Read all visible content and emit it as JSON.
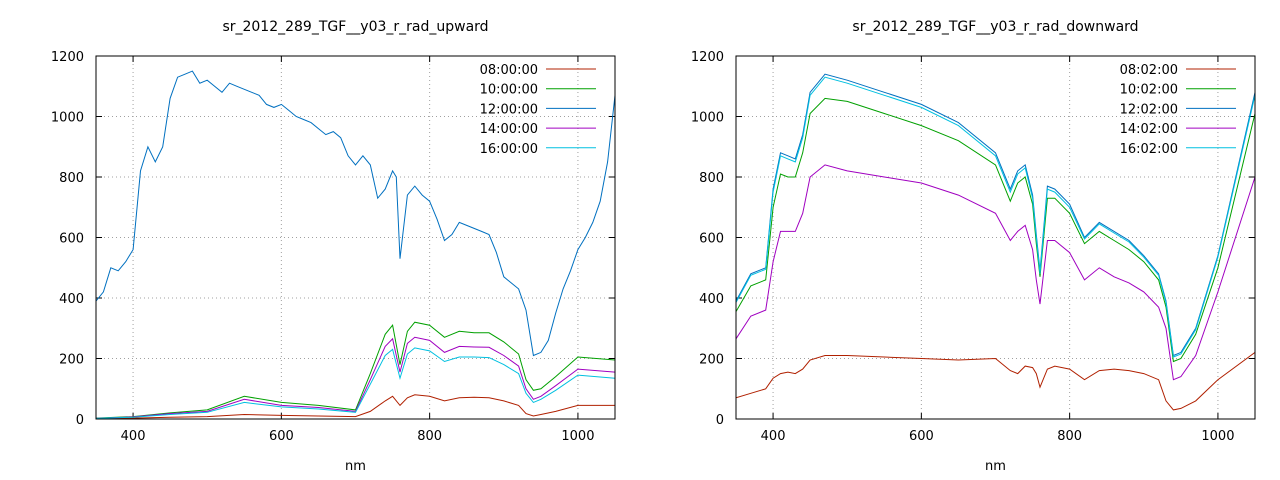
{
  "chart_data": [
    {
      "type": "line",
      "title": "sr_2012_289_TGF__y03_r_rad_upward",
      "xlabel": "nm",
      "ylabel": "",
      "xlim": [
        350,
        1050
      ],
      "ylim": [
        0,
        1200
      ],
      "xticks": [
        400,
        600,
        800,
        1000
      ],
      "yticks": [
        0,
        200,
        400,
        600,
        800,
        1000,
        1200
      ],
      "grid": true,
      "legend_position": "top-right",
      "series": [
        {
          "name": "08:00:00",
          "color": "#b02000",
          "x": [
            350,
            400,
            450,
            500,
            550,
            600,
            650,
            700,
            720,
            740,
            750,
            760,
            770,
            780,
            800,
            820,
            840,
            860,
            880,
            900,
            920,
            930,
            940,
            950,
            970,
            1000,
            1050
          ],
          "y": [
            2,
            3,
            6,
            8,
            15,
            12,
            10,
            8,
            25,
            60,
            75,
            45,
            70,
            80,
            75,
            60,
            70,
            72,
            70,
            60,
            45,
            18,
            10,
            15,
            25,
            45,
            45
          ]
        },
        {
          "name": "10:00:00",
          "color": "#00a000",
          "x": [
            350,
            400,
            450,
            500,
            550,
            600,
            650,
            700,
            720,
            740,
            750,
            760,
            770,
            780,
            800,
            820,
            840,
            860,
            880,
            900,
            920,
            930,
            940,
            950,
            970,
            1000,
            1050
          ],
          "y": [
            3,
            8,
            20,
            30,
            75,
            55,
            45,
            30,
            150,
            280,
            310,
            180,
            290,
            320,
            310,
            270,
            290,
            285,
            285,
            255,
            215,
            130,
            95,
            100,
            140,
            205,
            195
          ]
        },
        {
          "name": "12:00:00",
          "color": "#0070c0",
          "x": [
            350,
            360,
            370,
            380,
            390,
            400,
            410,
            420,
            430,
            440,
            450,
            460,
            470,
            480,
            490,
            500,
            510,
            520,
            530,
            540,
            550,
            560,
            570,
            580,
            590,
            600,
            610,
            620,
            630,
            640,
            650,
            660,
            670,
            680,
            690,
            700,
            710,
            720,
            730,
            740,
            750,
            755,
            760,
            770,
            780,
            790,
            800,
            810,
            820,
            830,
            840,
            850,
            860,
            870,
            880,
            890,
            900,
            910,
            920,
            930,
            940,
            950,
            960,
            970,
            980,
            990,
            1000,
            1010,
            1020,
            1030,
            1040,
            1050
          ],
          "y": [
            390,
            420,
            500,
            490,
            520,
            560,
            820,
            900,
            850,
            900,
            1060,
            1130,
            1140,
            1150,
            1110,
            1120,
            1100,
            1080,
            1110,
            1100,
            1090,
            1080,
            1070,
            1040,
            1030,
            1040,
            1020,
            1000,
            990,
            980,
            960,
            940,
            950,
            930,
            870,
            840,
            870,
            840,
            730,
            760,
            820,
            800,
            530,
            740,
            770,
            740,
            720,
            660,
            590,
            610,
            650,
            640,
            630,
            620,
            610,
            550,
            470,
            450,
            430,
            360,
            210,
            220,
            260,
            350,
            430,
            490,
            560,
            600,
            650,
            720,
            850,
            1070
          ]
        },
        {
          "name": "14:00:00",
          "color": "#a000c0",
          "x": [
            350,
            400,
            450,
            500,
            550,
            600,
            650,
            700,
            720,
            740,
            750,
            760,
            770,
            780,
            800,
            820,
            840,
            860,
            880,
            900,
            920,
            930,
            940,
            950,
            970,
            1000,
            1050
          ],
          "y": [
            2,
            7,
            18,
            25,
            65,
            45,
            38,
            25,
            130,
            240,
            265,
            155,
            250,
            270,
            260,
            220,
            240,
            238,
            237,
            210,
            175,
            100,
            65,
            75,
            110,
            165,
            155
          ]
        },
        {
          "name": "16:00:00",
          "color": "#00c0e0",
          "x": [
            350,
            400,
            450,
            500,
            550,
            600,
            650,
            700,
            720,
            740,
            750,
            760,
            770,
            780,
            800,
            820,
            840,
            860,
            880,
            900,
            920,
            930,
            940,
            950,
            970,
            1000,
            1050
          ],
          "y": [
            2,
            6,
            15,
            22,
            55,
            40,
            33,
            22,
            115,
            210,
            230,
            135,
            215,
            235,
            225,
            190,
            205,
            205,
            203,
            180,
            150,
            85,
            55,
            65,
            95,
            145,
            135
          ]
        }
      ]
    },
    {
      "type": "line",
      "title": "sr_2012_289_TGF__y03_r_rad_downward",
      "xlabel": "nm",
      "ylabel": "",
      "xlim": [
        350,
        1050
      ],
      "ylim": [
        0,
        1200
      ],
      "xticks": [
        400,
        600,
        800,
        1000
      ],
      "yticks": [
        0,
        200,
        400,
        600,
        800,
        1000,
        1200
      ],
      "grid": true,
      "legend_position": "top-right",
      "series": [
        {
          "name": "08:02:00",
          "color": "#b02000",
          "x": [
            350,
            370,
            390,
            400,
            410,
            420,
            430,
            440,
            450,
            470,
            500,
            550,
            600,
            650,
            700,
            720,
            730,
            740,
            750,
            755,
            760,
            770,
            780,
            800,
            820,
            840,
            860,
            880,
            900,
            920,
            930,
            940,
            950,
            970,
            1000,
            1050
          ],
          "y": [
            70,
            85,
            100,
            135,
            150,
            155,
            150,
            165,
            195,
            210,
            210,
            205,
            200,
            195,
            200,
            160,
            150,
            175,
            170,
            150,
            105,
            165,
            175,
            165,
            130,
            160,
            165,
            160,
            150,
            130,
            60,
            30,
            35,
            60,
            130,
            220
          ]
        },
        {
          "name": "10:02:00",
          "color": "#00a000",
          "x": [
            350,
            370,
            390,
            400,
            410,
            420,
            430,
            440,
            450,
            470,
            500,
            550,
            600,
            650,
            700,
            720,
            730,
            740,
            750,
            755,
            760,
            770,
            780,
            800,
            820,
            840,
            860,
            880,
            900,
            920,
            930,
            940,
            950,
            970,
            1000,
            1050
          ],
          "y": [
            355,
            440,
            460,
            700,
            810,
            800,
            800,
            880,
            1010,
            1060,
            1050,
            1010,
            970,
            920,
            840,
            720,
            780,
            800,
            710,
            580,
            470,
            730,
            730,
            680,
            580,
            620,
            590,
            560,
            520,
            460,
            370,
            190,
            200,
            280,
            500,
            1010
          ]
        },
        {
          "name": "12:02:00",
          "color": "#0070c0",
          "x": [
            350,
            370,
            390,
            400,
            410,
            420,
            430,
            440,
            450,
            470,
            500,
            550,
            600,
            650,
            700,
            720,
            730,
            740,
            750,
            755,
            760,
            770,
            780,
            800,
            820,
            840,
            860,
            880,
            900,
            920,
            930,
            940,
            950,
            970,
            1000,
            1050
          ],
          "y": [
            390,
            480,
            500,
            760,
            880,
            870,
            860,
            940,
            1080,
            1140,
            1120,
            1080,
            1040,
            980,
            880,
            760,
            820,
            840,
            740,
            610,
            490,
            770,
            760,
            710,
            600,
            650,
            620,
            590,
            540,
            480,
            390,
            210,
            220,
            300,
            540,
            1080
          ]
        },
        {
          "name": "14:02:00",
          "color": "#a000c0",
          "x": [
            350,
            370,
            390,
            400,
            410,
            420,
            430,
            440,
            450,
            470,
            500,
            550,
            600,
            650,
            700,
            720,
            730,
            740,
            750,
            755,
            760,
            770,
            780,
            800,
            820,
            840,
            860,
            880,
            900,
            920,
            930,
            940,
            950,
            970,
            1000,
            1050
          ],
          "y": [
            265,
            340,
            360,
            520,
            620,
            620,
            620,
            680,
            800,
            840,
            820,
            800,
            780,
            740,
            680,
            590,
            620,
            640,
            560,
            460,
            380,
            590,
            590,
            550,
            460,
            500,
            470,
            450,
            420,
            370,
            300,
            130,
            140,
            210,
            420,
            800
          ]
        },
        {
          "name": "16:02:00",
          "color": "#00c0e0",
          "x": [
            350,
            370,
            390,
            400,
            410,
            420,
            430,
            440,
            450,
            470,
            500,
            550,
            600,
            650,
            700,
            720,
            730,
            740,
            750,
            755,
            760,
            770,
            780,
            800,
            820,
            840,
            860,
            880,
            900,
            920,
            930,
            940,
            950,
            970,
            1000,
            1050
          ],
          "y": [
            385,
            475,
            495,
            750,
            870,
            860,
            850,
            930,
            1070,
            1130,
            1110,
            1070,
            1030,
            970,
            870,
            750,
            810,
            830,
            730,
            600,
            480,
            760,
            750,
            700,
            595,
            645,
            615,
            585,
            535,
            475,
            385,
            205,
            215,
            295,
            535,
            1070
          ]
        }
      ]
    }
  ]
}
